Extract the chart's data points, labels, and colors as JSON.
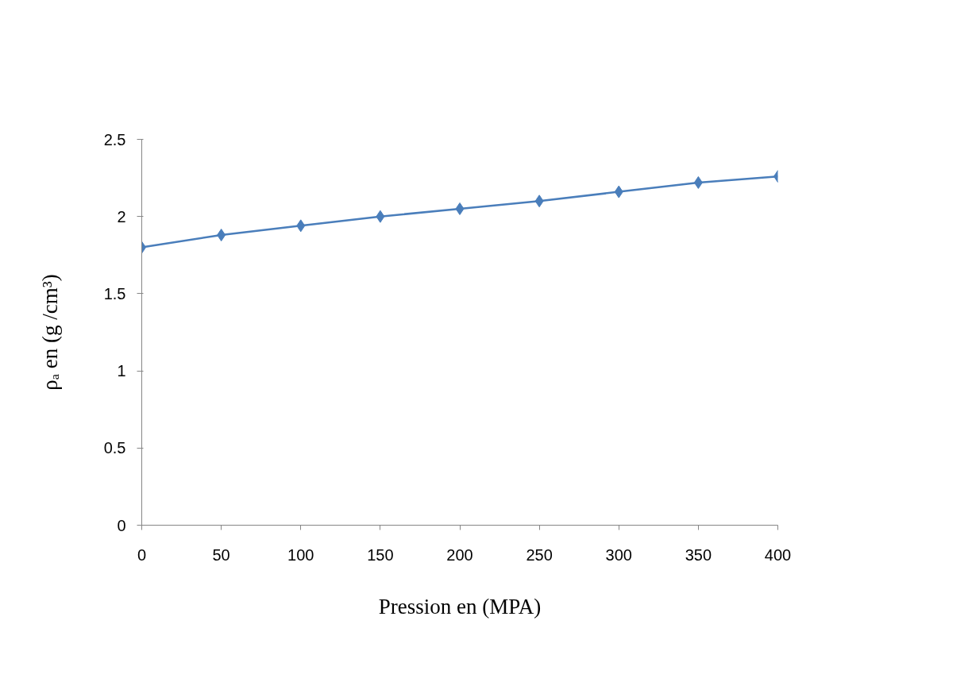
{
  "chart_data": {
    "type": "line",
    "xlabel": "Pression en (MPA)",
    "ylabel": "ρₐ en (g /cm³)",
    "x": [
      0,
      50,
      100,
      150,
      200,
      250,
      300,
      350,
      400
    ],
    "series": [
      {
        "color": "#4a7ebb",
        "values": [
          1.8,
          1.88,
          1.94,
          2.0,
          2.05,
          2.1,
          2.16,
          2.22,
          2.26
        ]
      }
    ],
    "xlim": [
      0,
      400
    ],
    "xticks": [
      0,
      50,
      100,
      150,
      200,
      250,
      300,
      350,
      400
    ],
    "ylim": [
      0,
      2.5
    ],
    "yticks": [
      0,
      0.5,
      1,
      1.5,
      2,
      2.5
    ],
    "grid": false,
    "marker": "diamond",
    "line_style": "solid"
  }
}
